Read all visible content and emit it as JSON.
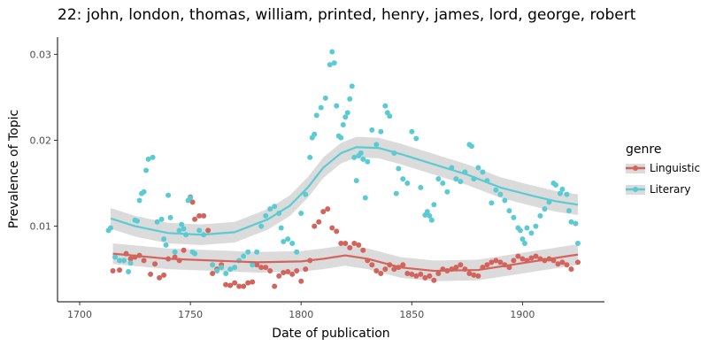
{
  "chart_data": {
    "type": "scatter",
    "title": "22: john, london, thomas, william, printed, henry, james, lord, george, robert",
    "xlabel": "Date of publication",
    "ylabel": "Prevalence of Topic",
    "xlim": [
      1690,
      1937
    ],
    "ylim": [
      0.0012,
      0.032
    ],
    "x_ticks": [
      1700,
      1750,
      1800,
      1850,
      1900
    ],
    "x_tick_labels": [
      "1700",
      "1750",
      "1800",
      "1850",
      "1900"
    ],
    "y_ticks": [
      0.01,
      0.02,
      0.03
    ],
    "y_tick_labels": [
      "0.01",
      "0.02",
      "0.03"
    ],
    "grid": false,
    "legend": {
      "title": "genre",
      "position": "right",
      "entries": [
        "Linguistic",
        "Literary"
      ]
    },
    "series": [
      {
        "name": "Linguistic",
        "color": "#d3635b",
        "points": [
          [
            1715,
            0.0048
          ],
          [
            1718,
            0.0049
          ],
          [
            1721,
            0.0068
          ],
          [
            1723,
            0.0062
          ],
          [
            1725,
            0.0064
          ],
          [
            1727,
            0.0066
          ],
          [
            1729,
            0.006
          ],
          [
            1732,
            0.0044
          ],
          [
            1734,
            0.0056
          ],
          [
            1736,
            0.004
          ],
          [
            1738,
            0.0043
          ],
          [
            1740,
            0.0062
          ],
          [
            1743,
            0.0064
          ],
          [
            1745,
            0.006
          ],
          [
            1747,
            0.0072
          ],
          [
            1750,
            0.0134
          ],
          [
            1751,
            0.0128
          ],
          [
            1752,
            0.0108
          ],
          [
            1754,
            0.0112
          ],
          [
            1756,
            0.0112
          ],
          [
            1758,
            0.0095
          ],
          [
            1760,
            0.0045
          ],
          [
            1762,
            0.005
          ],
          [
            1764,
            0.0055
          ],
          [
            1766,
            0.0032
          ],
          [
            1768,
            0.0031
          ],
          [
            1770,
            0.0034
          ],
          [
            1772,
            0.003
          ],
          [
            1774,
            0.003
          ],
          [
            1776,
            0.0034
          ],
          [
            1778,
            0.0035
          ],
          [
            1780,
            0.0055
          ],
          [
            1782,
            0.0052
          ],
          [
            1784,
            0.0052
          ],
          [
            1786,
            0.0048
          ],
          [
            1788,
            0.003
          ],
          [
            1790,
            0.0042
          ],
          [
            1792,
            0.0046
          ],
          [
            1794,
            0.0047
          ],
          [
            1796,
            0.0044
          ],
          [
            1798,
            0.0048
          ],
          [
            1800,
            0.0036
          ],
          [
            1802,
            0.005
          ],
          [
            1804,
            0.006
          ],
          [
            1806,
            0.01
          ],
          [
            1808,
            0.0105
          ],
          [
            1810,
            0.0117
          ],
          [
            1812,
            0.012
          ],
          [
            1814,
            0.0098
          ],
          [
            1816,
            0.0094
          ],
          [
            1818,
            0.008
          ],
          [
            1820,
            0.008
          ],
          [
            1822,
            0.0075
          ],
          [
            1824,
            0.008
          ],
          [
            1826,
            0.0078
          ],
          [
            1828,
            0.0072
          ],
          [
            1830,
            0.006
          ],
          [
            1832,
            0.0055
          ],
          [
            1834,
            0.0048
          ],
          [
            1836,
            0.0045
          ],
          [
            1838,
            0.005
          ],
          [
            1840,
            0.0055
          ],
          [
            1842,
            0.005
          ],
          [
            1844,
            0.0052
          ],
          [
            1846,
            0.0055
          ],
          [
            1848,
            0.0045
          ],
          [
            1850,
            0.0044
          ],
          [
            1852,
            0.0042
          ],
          [
            1854,
            0.0044
          ],
          [
            1856,
            0.004
          ],
          [
            1858,
            0.0042
          ],
          [
            1860,
            0.0037
          ],
          [
            1862,
            0.0045
          ],
          [
            1864,
            0.005
          ],
          [
            1866,
            0.0048
          ],
          [
            1868,
            0.005
          ],
          [
            1870,
            0.0052
          ],
          [
            1872,
            0.0055
          ],
          [
            1874,
            0.005
          ],
          [
            1876,
            0.0045
          ],
          [
            1878,
            0.0043
          ],
          [
            1880,
            0.0042
          ],
          [
            1882,
            0.0052
          ],
          [
            1884,
            0.0055
          ],
          [
            1886,
            0.0058
          ],
          [
            1888,
            0.006
          ],
          [
            1890,
            0.0058
          ],
          [
            1892,
            0.0055
          ],
          [
            1894,
            0.0052
          ],
          [
            1896,
            0.006
          ],
          [
            1898,
            0.0065
          ],
          [
            1900,
            0.0062
          ],
          [
            1902,
            0.006
          ],
          [
            1904,
            0.0063
          ],
          [
            1906,
            0.0065
          ],
          [
            1908,
            0.0062
          ],
          [
            1910,
            0.006
          ],
          [
            1912,
            0.0062
          ],
          [
            1914,
            0.006
          ],
          [
            1916,
            0.0056
          ],
          [
            1918,
            0.0058
          ],
          [
            1920,
            0.0055
          ],
          [
            1922,
            0.005
          ],
          [
            1925,
            0.0058
          ]
        ],
        "trend": [
          [
            1715,
            0.0068
          ],
          [
            1740,
            0.0062
          ],
          [
            1760,
            0.006
          ],
          [
            1780,
            0.0058
          ],
          [
            1800,
            0.0059
          ],
          [
            1810,
            0.0062
          ],
          [
            1820,
            0.0066
          ],
          [
            1830,
            0.0062
          ],
          [
            1845,
            0.0052
          ],
          [
            1860,
            0.0048
          ],
          [
            1880,
            0.0049
          ],
          [
            1900,
            0.0057
          ],
          [
            1925,
            0.0067
          ]
        ]
      },
      {
        "name": "Literary",
        "color": "#5bcbd3",
        "points": [
          [
            1713,
            0.0095
          ],
          [
            1714,
            0.0098
          ],
          [
            1716,
            0.0064
          ],
          [
            1718,
            0.006
          ],
          [
            1720,
            0.006
          ],
          [
            1722,
            0.0047
          ],
          [
            1723,
            0.0057
          ],
          [
            1725,
            0.0107
          ],
          [
            1726,
            0.0106
          ],
          [
            1727,
            0.013
          ],
          [
            1728,
            0.0138
          ],
          [
            1729,
            0.014
          ],
          [
            1730,
            0.0165
          ],
          [
            1731,
            0.0178
          ],
          [
            1733,
            0.018
          ],
          [
            1735,
            0.0105
          ],
          [
            1737,
            0.0108
          ],
          [
            1738,
            0.0085
          ],
          [
            1739,
            0.0078
          ],
          [
            1740,
            0.0136
          ],
          [
            1741,
            0.011
          ],
          [
            1743,
            0.007
          ],
          [
            1745,
            0.0095
          ],
          [
            1746,
            0.0102
          ],
          [
            1747,
            0.0097
          ],
          [
            1748,
            0.009
          ],
          [
            1749,
            0.013
          ],
          [
            1750,
            0.0133
          ],
          [
            1751,
            0.007
          ],
          [
            1752,
            0.0068
          ],
          [
            1754,
            0.0095
          ],
          [
            1756,
            0.009
          ],
          [
            1760,
            0.0055
          ],
          [
            1762,
            0.0048
          ],
          [
            1764,
            0.0052
          ],
          [
            1766,
            0.0045
          ],
          [
            1768,
            0.005
          ],
          [
            1770,
            0.0052
          ],
          [
            1772,
            0.006
          ],
          [
            1774,
            0.0065
          ],
          [
            1776,
            0.007
          ],
          [
            1778,
            0.0055
          ],
          [
            1780,
            0.007
          ],
          [
            1782,
            0.01
          ],
          [
            1784,
            0.0112
          ],
          [
            1786,
            0.012
          ],
          [
            1788,
            0.0123
          ],
          [
            1790,
            0.0115
          ],
          [
            1791,
            0.0098
          ],
          [
            1792,
            0.0082
          ],
          [
            1794,
            0.0085
          ],
          [
            1796,
            0.008
          ],
          [
            1798,
            0.007
          ],
          [
            1800,
            0.0115
          ],
          [
            1802,
            0.0137
          ],
          [
            1804,
            0.018
          ],
          [
            1805,
            0.0203
          ],
          [
            1806,
            0.0207
          ],
          [
            1807,
            0.0229
          ],
          [
            1809,
            0.0238
          ],
          [
            1811,
            0.0249
          ],
          [
            1813,
            0.0288
          ],
          [
            1814,
            0.0303
          ],
          [
            1815,
            0.029
          ],
          [
            1816,
            0.024
          ],
          [
            1817,
            0.0205
          ],
          [
            1818,
            0.0203
          ],
          [
            1819,
            0.0218
          ],
          [
            1820,
            0.0227
          ],
          [
            1821,
            0.0232
          ],
          [
            1822,
            0.0248
          ],
          [
            1823,
            0.0263
          ],
          [
            1824,
            0.018
          ],
          [
            1825,
            0.0153
          ],
          [
            1826,
            0.0182
          ],
          [
            1827,
            0.0185
          ],
          [
            1828,
            0.0178
          ],
          [
            1829,
            0.0133
          ],
          [
            1830,
            0.0175
          ],
          [
            1832,
            0.0212
          ],
          [
            1834,
            0.0195
          ],
          [
            1836,
            0.021
          ],
          [
            1838,
            0.024
          ],
          [
            1839,
            0.0232
          ],
          [
            1840,
            0.0228
          ],
          [
            1842,
            0.0185
          ],
          [
            1843,
            0.0138
          ],
          [
            1844,
            0.0167
          ],
          [
            1846,
            0.0155
          ],
          [
            1848,
            0.015
          ],
          [
            1850,
            0.021
          ],
          [
            1852,
            0.0202
          ],
          [
            1854,
            0.0145
          ],
          [
            1856,
            0.0113
          ],
          [
            1857,
            0.0117
          ],
          [
            1858,
            0.0112
          ],
          [
            1859,
            0.0107
          ],
          [
            1860,
            0.0125
          ],
          [
            1862,
            0.0155
          ],
          [
            1864,
            0.015
          ],
          [
            1866,
            0.014
          ],
          [
            1868,
            0.0168
          ],
          [
            1870,
            0.0155
          ],
          [
            1872,
            0.0152
          ],
          [
            1874,
            0.0163
          ],
          [
            1876,
            0.0195
          ],
          [
            1877,
            0.0193
          ],
          [
            1878,
            0.0155
          ],
          [
            1880,
            0.0168
          ],
          [
            1882,
            0.0163
          ],
          [
            1884,
            0.0153
          ],
          [
            1886,
            0.0127
          ],
          [
            1888,
            0.0142
          ],
          [
            1890,
            0.0137
          ],
          [
            1892,
            0.013
          ],
          [
            1894,
            0.0118
          ],
          [
            1896,
            0.011
          ],
          [
            1898,
            0.0098
          ],
          [
            1899,
            0.0095
          ],
          [
            1900,
            0.0085
          ],
          [
            1901,
            0.008
          ],
          [
            1902,
            0.0098
          ],
          [
            1904,
            0.0092
          ],
          [
            1906,
            0.01
          ],
          [
            1908,
            0.0112
          ],
          [
            1910,
            0.012
          ],
          [
            1912,
            0.0128
          ],
          [
            1914,
            0.015
          ],
          [
            1915,
            0.0148
          ],
          [
            1917,
            0.0138
          ],
          [
            1918,
            0.0143
          ],
          [
            1920,
            0.0137
          ],
          [
            1921,
            0.0118
          ],
          [
            1922,
            0.0105
          ],
          [
            1924,
            0.0103
          ],
          [
            1925,
            0.008
          ]
        ],
        "trend": [
          [
            1714,
            0.0109
          ],
          [
            1725,
            0.01
          ],
          [
            1740,
            0.0092
          ],
          [
            1755,
            0.009
          ],
          [
            1770,
            0.0093
          ],
          [
            1785,
            0.0108
          ],
          [
            1795,
            0.0124
          ],
          [
            1803,
            0.0145
          ],
          [
            1810,
            0.0168
          ],
          [
            1818,
            0.0185
          ],
          [
            1825,
            0.0192
          ],
          [
            1835,
            0.0191
          ],
          [
            1845,
            0.0184
          ],
          [
            1860,
            0.0172
          ],
          [
            1875,
            0.016
          ],
          [
            1890,
            0.0145
          ],
          [
            1905,
            0.0135
          ],
          [
            1915,
            0.0129
          ],
          [
            1925,
            0.0125
          ]
        ]
      }
    ]
  }
}
